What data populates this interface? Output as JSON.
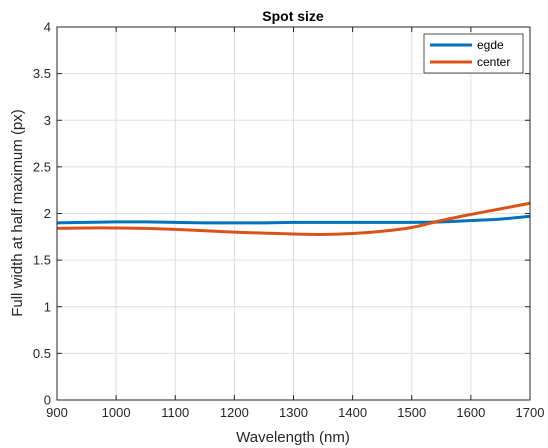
{
  "chart_data": {
    "type": "line",
    "title": "Spot size",
    "xlabel": "Wavelength (nm)",
    "ylabel": "Full width at half maximum (px)",
    "xlim": [
      900,
      1700
    ],
    "ylim": [
      0,
      4
    ],
    "x_ticks": [
      "900",
      "1000",
      "1100",
      "1200",
      "1300",
      "1400",
      "1500",
      "1600",
      "1700"
    ],
    "y_ticks": [
      "0",
      "0.5",
      "1",
      "1.5",
      "2",
      "2.5",
      "3",
      "3.5",
      "4"
    ],
    "grid": true,
    "legend_position": "top-right",
    "x": [
      900,
      950,
      1000,
      1050,
      1100,
      1150,
      1200,
      1250,
      1300,
      1350,
      1400,
      1450,
      1500,
      1550,
      1600,
      1650,
      1700
    ],
    "series": [
      {
        "name": "egde",
        "color": "#0072BD",
        "values": [
          1.9,
          1.905,
          1.91,
          1.91,
          1.905,
          1.9,
          1.9,
          1.9,
          1.905,
          1.905,
          1.905,
          1.905,
          1.905,
          1.91,
          1.925,
          1.94,
          1.97
        ]
      },
      {
        "name": "center",
        "color": "#D95319",
        "values": [
          1.84,
          1.845,
          1.845,
          1.84,
          1.83,
          1.815,
          1.8,
          1.79,
          1.78,
          1.775,
          1.785,
          1.81,
          1.85,
          1.925,
          1.99,
          2.05,
          2.11
        ]
      }
    ]
  }
}
